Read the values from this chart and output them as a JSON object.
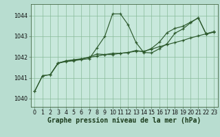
{
  "background_color": "#b8ddd0",
  "plot_bg_color": "#c8e8dc",
  "grid_color": "#88bb99",
  "line_color": "#2d5a2d",
  "xlabel": "Graphe pression niveau de la mer (hPa)",
  "xlabel_fontsize": 7.0,
  "tick_fontsize": 5.8,
  "ylim": [
    1039.6,
    1044.55
  ],
  "xlim": [
    -0.5,
    23.5
  ],
  "yticks": [
    1040,
    1041,
    1042,
    1043,
    1044
  ],
  "xticks": [
    0,
    1,
    2,
    3,
    4,
    5,
    6,
    7,
    8,
    9,
    10,
    11,
    12,
    13,
    14,
    15,
    16,
    17,
    18,
    19,
    20,
    21,
    22,
    23
  ],
  "series": [
    {
      "x": [
        0,
        1,
        2,
        3,
        4,
        5,
        6,
        7,
        8,
        9,
        10,
        11,
        12,
        13,
        14,
        15,
        16,
        17,
        18,
        19,
        20,
        21,
        22,
        23
      ],
      "y": [
        1040.35,
        1041.1,
        1041.15,
        1041.7,
        1041.78,
        1041.82,
        1041.88,
        1041.92,
        1042.45,
        1043.0,
        1044.08,
        1044.08,
        1043.55,
        1042.7,
        1042.22,
        1042.2,
        1042.4,
        1042.65,
        1043.15,
        1043.35,
        1043.65,
        1043.9,
        1043.1,
        1043.2
      ]
    },
    {
      "x": [
        0,
        1,
        2,
        3,
        4,
        5,
        6,
        7,
        8,
        9,
        10,
        11,
        12,
        13,
        14,
        15,
        16,
        17,
        18,
        19,
        20,
        21,
        22,
        23
      ],
      "y": [
        1040.35,
        1041.1,
        1041.15,
        1041.72,
        1041.8,
        1041.85,
        1041.9,
        1042.0,
        1042.15,
        1042.12,
        1042.12,
        1042.18,
        1042.22,
        1042.32,
        1042.25,
        1042.42,
        1042.72,
        1043.18,
        1043.38,
        1043.48,
        1043.68,
        1043.88,
        1043.12,
        1043.22
      ]
    },
    {
      "x": [
        2,
        3,
        4,
        5,
        6,
        7,
        8,
        9,
        10,
        11,
        12,
        13,
        14,
        15,
        16,
        17,
        18,
        19,
        20,
        21,
        22,
        23
      ],
      "y": [
        1041.15,
        1041.7,
        1041.82,
        1041.87,
        1041.92,
        1041.98,
        1042.05,
        1042.12,
        1042.18,
        1042.18,
        1042.22,
        1042.28,
        1042.28,
        1042.38,
        1042.5,
        1042.6,
        1042.7,
        1042.8,
        1042.92,
        1043.02,
        1043.12,
        1043.22
      ]
    }
  ]
}
